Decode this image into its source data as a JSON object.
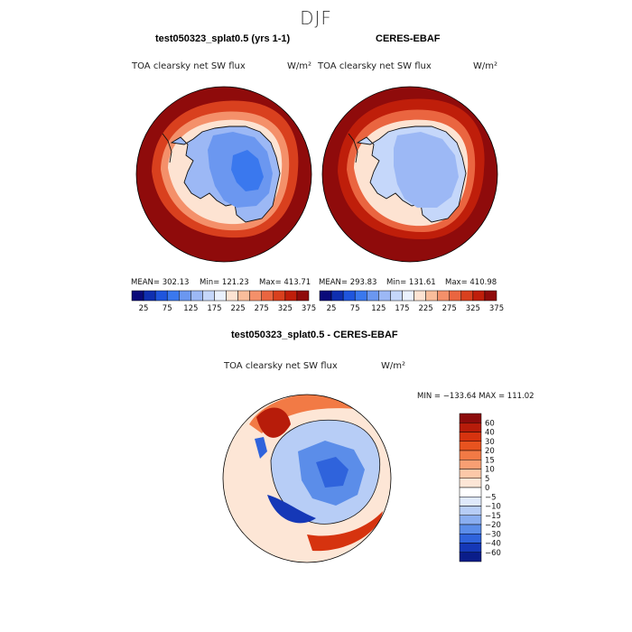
{
  "season": "DJF",
  "colors": {
    "coast": "#111111",
    "circle": "#000000"
  },
  "chart_data": [
    {
      "type": "heatmap",
      "title": "test050323_splat0.5 (yrs 1-1)",
      "variable": "TOA clearsky net SW flux",
      "units": "W/m²",
      "projection": "south polar stereographic",
      "stats": {
        "mean": "MEAN= 302.13",
        "min": "Min= 121.23",
        "max": "Max= 413.71"
      },
      "colorbar": {
        "orientation": "horizontal",
        "levels": [
          25,
          50,
          75,
          100,
          125,
          150,
          175,
          200,
          225,
          250,
          275,
          300,
          325,
          350,
          375
        ],
        "tick_labels": [
          "25",
          "75",
          "125",
          "175",
          "225",
          "275",
          "325",
          "375"
        ],
        "colors": [
          "#0a0a7a",
          "#0f2fb0",
          "#1f55dd",
          "#3a78ee",
          "#6b97f0",
          "#9cb8f5",
          "#c5d7fa",
          "#eaf1fd",
          "#fde3d2",
          "#f9bd9b",
          "#f4906a",
          "#ea6540",
          "#d9401e",
          "#bf1e0a",
          "#8f0b0b"
        ]
      }
    },
    {
      "type": "heatmap",
      "title": "CERES-EBAF",
      "variable": "TOA clearsky net SW flux",
      "units": "W/m²",
      "projection": "south polar stereographic",
      "stats": {
        "mean": "MEAN= 293.83",
        "min": "Min= 131.61",
        "max": "Max= 410.98"
      },
      "colorbar": {
        "orientation": "horizontal",
        "levels": [
          25,
          50,
          75,
          100,
          125,
          150,
          175,
          200,
          225,
          250,
          275,
          300,
          325,
          350,
          375
        ],
        "tick_labels": [
          "25",
          "75",
          "125",
          "175",
          "225",
          "275",
          "325",
          "375"
        ],
        "colors": [
          "#0a0a7a",
          "#0f2fb0",
          "#1f55dd",
          "#3a78ee",
          "#6b97f0",
          "#9cb8f5",
          "#c5d7fa",
          "#eaf1fd",
          "#fde3d2",
          "#f9bd9b",
          "#f4906a",
          "#ea6540",
          "#d9401e",
          "#bf1e0a",
          "#8f0b0b"
        ]
      }
    },
    {
      "type": "heatmap",
      "title": "test050323_splat0.5 - CERES-EBAF",
      "variable": "TOA clearsky net SW flux",
      "units": "W/m²",
      "projection": "south polar stereographic",
      "stats": {
        "text": "MIN = −133.64  MAX = 111.02",
        "min": -133.64,
        "max": 111.02
      },
      "colorbar": {
        "orientation": "vertical",
        "tick_labels": [
          "60",
          "40",
          "30",
          "20",
          "15",
          "10",
          "5",
          "0",
          "−5",
          "−10",
          "−15",
          "−20",
          "−30",
          "−40",
          "−60"
        ],
        "colors": [
          "#8c0c0c",
          "#b71c0a",
          "#d6330f",
          "#e8531f",
          "#f27a45",
          "#f89f73",
          "#fcc8a8",
          "#fde6d6",
          "#ffffff",
          "#dfe9fb",
          "#b7cdf6",
          "#8aaef0",
          "#5b8de9",
          "#2f63dc",
          "#1538b7",
          "#0a1d8a"
        ]
      }
    }
  ]
}
